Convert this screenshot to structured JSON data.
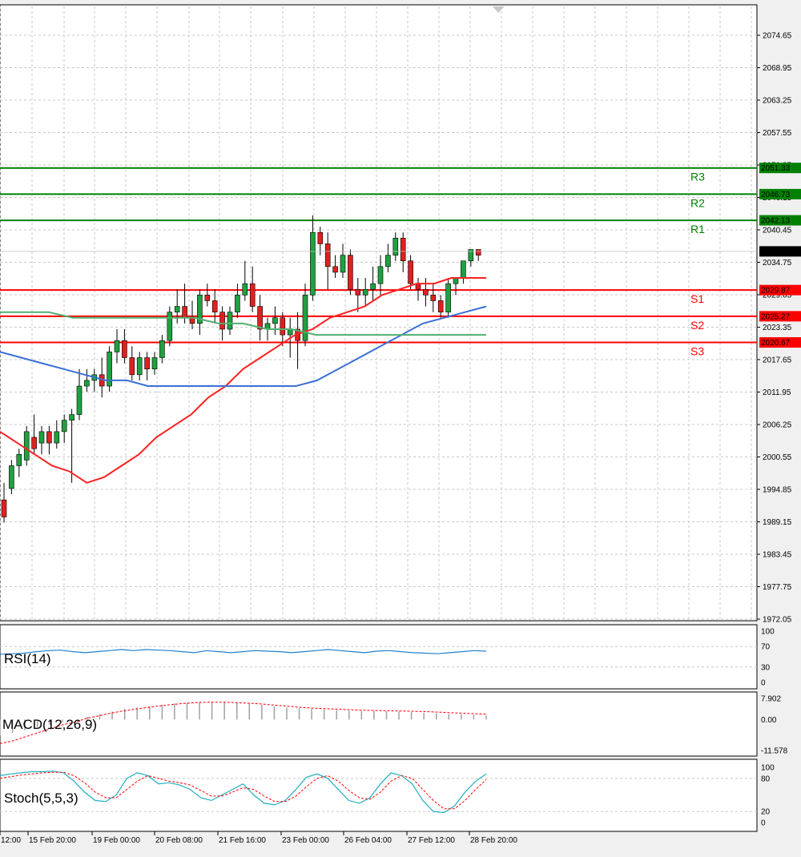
{
  "colors": {
    "up_candle": "#20a040",
    "down_candle": "#e02020",
    "support": "#ff0000",
    "resistance": "#008000",
    "ma_fast": "#ff2020",
    "ma_mid": "#3a6fd8",
    "ma_slow": "#50b070",
    "rsi": "#2080d0",
    "macd_hist": "#a0a0a0",
    "macd_signal": "#ff0000",
    "stoch_main": "#20b0c0",
    "stoch_signal": "#ff0000",
    "grid": "#c8c8c8"
  },
  "chart_data": {
    "type": "candlestick",
    "grid": true,
    "price_axis": {
      "ticks": [
        "2074.65",
        "2068.95",
        "2063.25",
        "2057.55",
        "2051.85",
        "2046.15",
        "2040.45",
        "2034.75",
        "2029.05",
        "2023.35",
        "2017.65",
        "2011.95",
        "2006.25",
        "2000.55",
        "1994.85",
        "1989.15",
        "1983.45",
        "1977.75",
        "1972.05"
      ],
      "current_price": "2036.67"
    },
    "levels": [
      {
        "name": "R3",
        "value": 2051.33,
        "label": "2051.33",
        "kind": "resistance"
      },
      {
        "name": "R2",
        "value": 2046.73,
        "label": "2046.73",
        "kind": "resistance"
      },
      {
        "name": "R1",
        "value": 2042.13,
        "label": "2042.13",
        "kind": "resistance"
      },
      {
        "name": "S1",
        "value": 2029.87,
        "label": "2029.87",
        "kind": "support"
      },
      {
        "name": "S2",
        "value": 2025.27,
        "label": "2025.27",
        "kind": "support"
      },
      {
        "name": "S3",
        "value": 2020.67,
        "label": "2020.67",
        "kind": "support"
      }
    ],
    "time_labels": [
      "12:00",
      "15 Feb 20:00",
      "19 Feb 00:00",
      "20 Feb 08:00",
      "21 Feb 16:00",
      "23 Feb 00:00",
      "26 Feb 04:00",
      "27 Feb 12:00",
      "28 Feb 20:00"
    ],
    "candles_ohlc": [
      [
        1993,
        1996,
        1989,
        1990
      ],
      [
        1995,
        2000,
        1994,
        1999
      ],
      [
        1999,
        2002,
        1997,
        2001
      ],
      [
        2000,
        2006,
        1999,
        2005
      ],
      [
        2004,
        2008,
        2001,
        2002
      ],
      [
        2003,
        2006,
        2001,
        2005
      ],
      [
        2005,
        2006,
        2001,
        2003
      ],
      [
        2003,
        2007,
        2002,
        2005
      ],
      [
        2005,
        2008,
        2003,
        2007
      ],
      [
        2007,
        2009,
        1996,
        2008
      ],
      [
        2008,
        2016,
        2007,
        2013
      ],
      [
        2013,
        2016,
        2012,
        2014
      ],
      [
        2014,
        2016,
        2012,
        2015
      ],
      [
        2015,
        2018,
        2011,
        2013
      ],
      [
        2013,
        2020,
        2012,
        2019
      ],
      [
        2019,
        2023,
        2017,
        2021
      ],
      [
        2021,
        2023,
        2017,
        2018
      ],
      [
        2018,
        2020,
        2014,
        2015
      ],
      [
        2015,
        2019,
        2014,
        2018
      ],
      [
        2018,
        2019,
        2014,
        2016
      ],
      [
        2016,
        2019,
        2015,
        2018
      ],
      [
        2018,
        2022,
        2017,
        2021
      ],
      [
        2021,
        2027,
        2020,
        2026
      ],
      [
        2026,
        2030,
        2024,
        2027
      ],
      [
        2027,
        2031,
        2024,
        2025
      ],
      [
        2025,
        2028,
        2023,
        2024
      ],
      [
        2024,
        2030,
        2022,
        2029
      ],
      [
        2029,
        2031,
        2027,
        2028
      ],
      [
        2028,
        2030,
        2024,
        2026
      ],
      [
        2026,
        2027,
        2021,
        2023
      ],
      [
        2023,
        2027,
        2022,
        2026
      ],
      [
        2026,
        2031,
        2025,
        2029
      ],
      [
        2029,
        2035,
        2028,
        2031
      ],
      [
        2031,
        2034,
        2026,
        2027
      ],
      [
        2027,
        2029,
        2021,
        2023
      ],
      [
        2023,
        2025,
        2021,
        2024
      ],
      [
        2024,
        2027,
        2022,
        2025
      ],
      [
        2025,
        2026,
        2020,
        2022
      ],
      [
        2022,
        2025,
        2018,
        2023
      ],
      [
        2023,
        2026,
        2016,
        2021
      ],
      [
        2021,
        2031,
        2020,
        2029
      ],
      [
        2029,
        2043,
        2028,
        2040
      ],
      [
        2040,
        2041,
        2036,
        2038
      ],
      [
        2038,
        2040,
        2030,
        2034
      ],
      [
        2034,
        2036,
        2032,
        2033
      ],
      [
        2033,
        2038,
        2032,
        2036
      ],
      [
        2036,
        2037,
        2029,
        2030
      ],
      [
        2030,
        2032,
        2026,
        2029
      ],
      [
        2029,
        2032,
        2027,
        2030
      ],
      [
        2030,
        2034,
        2028,
        2031
      ],
      [
        2031,
        2036,
        2029,
        2034
      ],
      [
        2034,
        2038,
        2033,
        2036
      ],
      [
        2036,
        2040,
        2035,
        2039
      ],
      [
        2039,
        2040,
        2033,
        2035
      ],
      [
        2035,
        2036,
        2030,
        2031
      ],
      [
        2031,
        2032,
        2028,
        2030
      ],
      [
        2030,
        2032,
        2027,
        2029
      ],
      [
        2029,
        2031,
        2026,
        2028
      ],
      [
        2028,
        2029,
        2025,
        2026
      ],
      [
        2026,
        2032,
        2025,
        2031
      ],
      [
        2031,
        2032,
        2029,
        2032
      ],
      [
        2032,
        2035,
        2031,
        2035
      ],
      [
        2035,
        2037,
        2034,
        2037
      ],
      [
        2037,
        2037,
        2035,
        2036
      ]
    ],
    "ma_fast_values": [
      2005,
      2003,
      2001,
      1999,
      1998,
      1996,
      1997,
      1999,
      2001,
      2004,
      2006,
      2008,
      2011,
      2013,
      2016,
      2018,
      2020,
      2022,
      2023,
      2025,
      2026,
      2027,
      2029,
      2030,
      2031,
      2031,
      2032,
      2032,
      2032
    ],
    "ma_mid_values": [
      2019,
      2018,
      2017,
      2016,
      2015,
      2014,
      2014,
      2013,
      2013,
      2013,
      2013,
      2013,
      2013,
      2013,
      2013,
      2014,
      2016,
      2018,
      2020,
      2022,
      2024,
      2025,
      2026,
      2027
    ],
    "ma_slow_values": [
      2026,
      2026,
      2026,
      2025,
      2025,
      2025,
      2025,
      2025,
      2025,
      2024,
      2024,
      2023,
      2023,
      2022,
      2022,
      2022,
      2022,
      2022,
      2022,
      2022,
      2022
    ],
    "rsi": {
      "label": "RSI(14)",
      "ticks": [
        "100",
        "70",
        "30",
        "0"
      ],
      "values": [
        55,
        56,
        57,
        60,
        62,
        63,
        60,
        58,
        60,
        62,
        64,
        62,
        64,
        63,
        62,
        60,
        58,
        62,
        60,
        58,
        60,
        62,
        61,
        60,
        58,
        60,
        62,
        64,
        62,
        60,
        58,
        61,
        62,
        60,
        58,
        57,
        56,
        58,
        60,
        62,
        61
      ]
    },
    "macd": {
      "label": "MACD(12,26,9)",
      "ticks": [
        "7.902",
        "0.00",
        "-11.578"
      ],
      "hist": [
        -6,
        -5,
        -4,
        -3,
        -2,
        -1,
        0,
        1,
        2,
        3,
        4,
        4.5,
        5,
        5.5,
        6,
        6.3,
        6.5,
        6.6,
        6.5,
        6.3,
        6,
        5.5,
        5,
        4.5,
        4.2,
        4,
        3.8,
        3.5,
        3.3,
        3.2,
        3.2,
        3.1,
        3,
        2.8,
        2.5,
        2.3,
        2.1,
        2,
        1.8,
        1.6
      ],
      "signal": [
        -9,
        -8,
        -6.5,
        -5,
        -3.5,
        -2,
        -1,
        0.5,
        1.5,
        2.5,
        3.3,
        4,
        4.6,
        5.2,
        5.7,
        6.1,
        6.4,
        6.5,
        6.5,
        6.3,
        6.1,
        5.8,
        5.4,
        5,
        4.6,
        4.3,
        4.1,
        3.9,
        3.7,
        3.5,
        3.4,
        3.3,
        3.2,
        3.1,
        3,
        2.8,
        2.6,
        2.4,
        2.2,
        2
      ]
    },
    "stoch": {
      "label": "Stoch(5,5,3)",
      "ticks": [
        "100",
        "80",
        "20",
        "0"
      ],
      "main": [
        85,
        88,
        90,
        92,
        92,
        93,
        90,
        75,
        55,
        40,
        38,
        50,
        80,
        90,
        85,
        70,
        72,
        68,
        60,
        45,
        40,
        50,
        60,
        70,
        50,
        35,
        32,
        40,
        60,
        82,
        88,
        80,
        60,
        40,
        35,
        45,
        70,
        90,
        85,
        70,
        40,
        20,
        18,
        30,
        55,
        75,
        88
      ],
      "signal": [
        80,
        83,
        86,
        88,
        90,
        91,
        91,
        85,
        72,
        55,
        45,
        45,
        60,
        75,
        85,
        80,
        75,
        72,
        68,
        58,
        48,
        48,
        55,
        63,
        60,
        48,
        38,
        38,
        48,
        65,
        80,
        85,
        75,
        58,
        45,
        42,
        55,
        75,
        85,
        80,
        60,
        40,
        25,
        25,
        40,
        60,
        78
      ]
    }
  }
}
